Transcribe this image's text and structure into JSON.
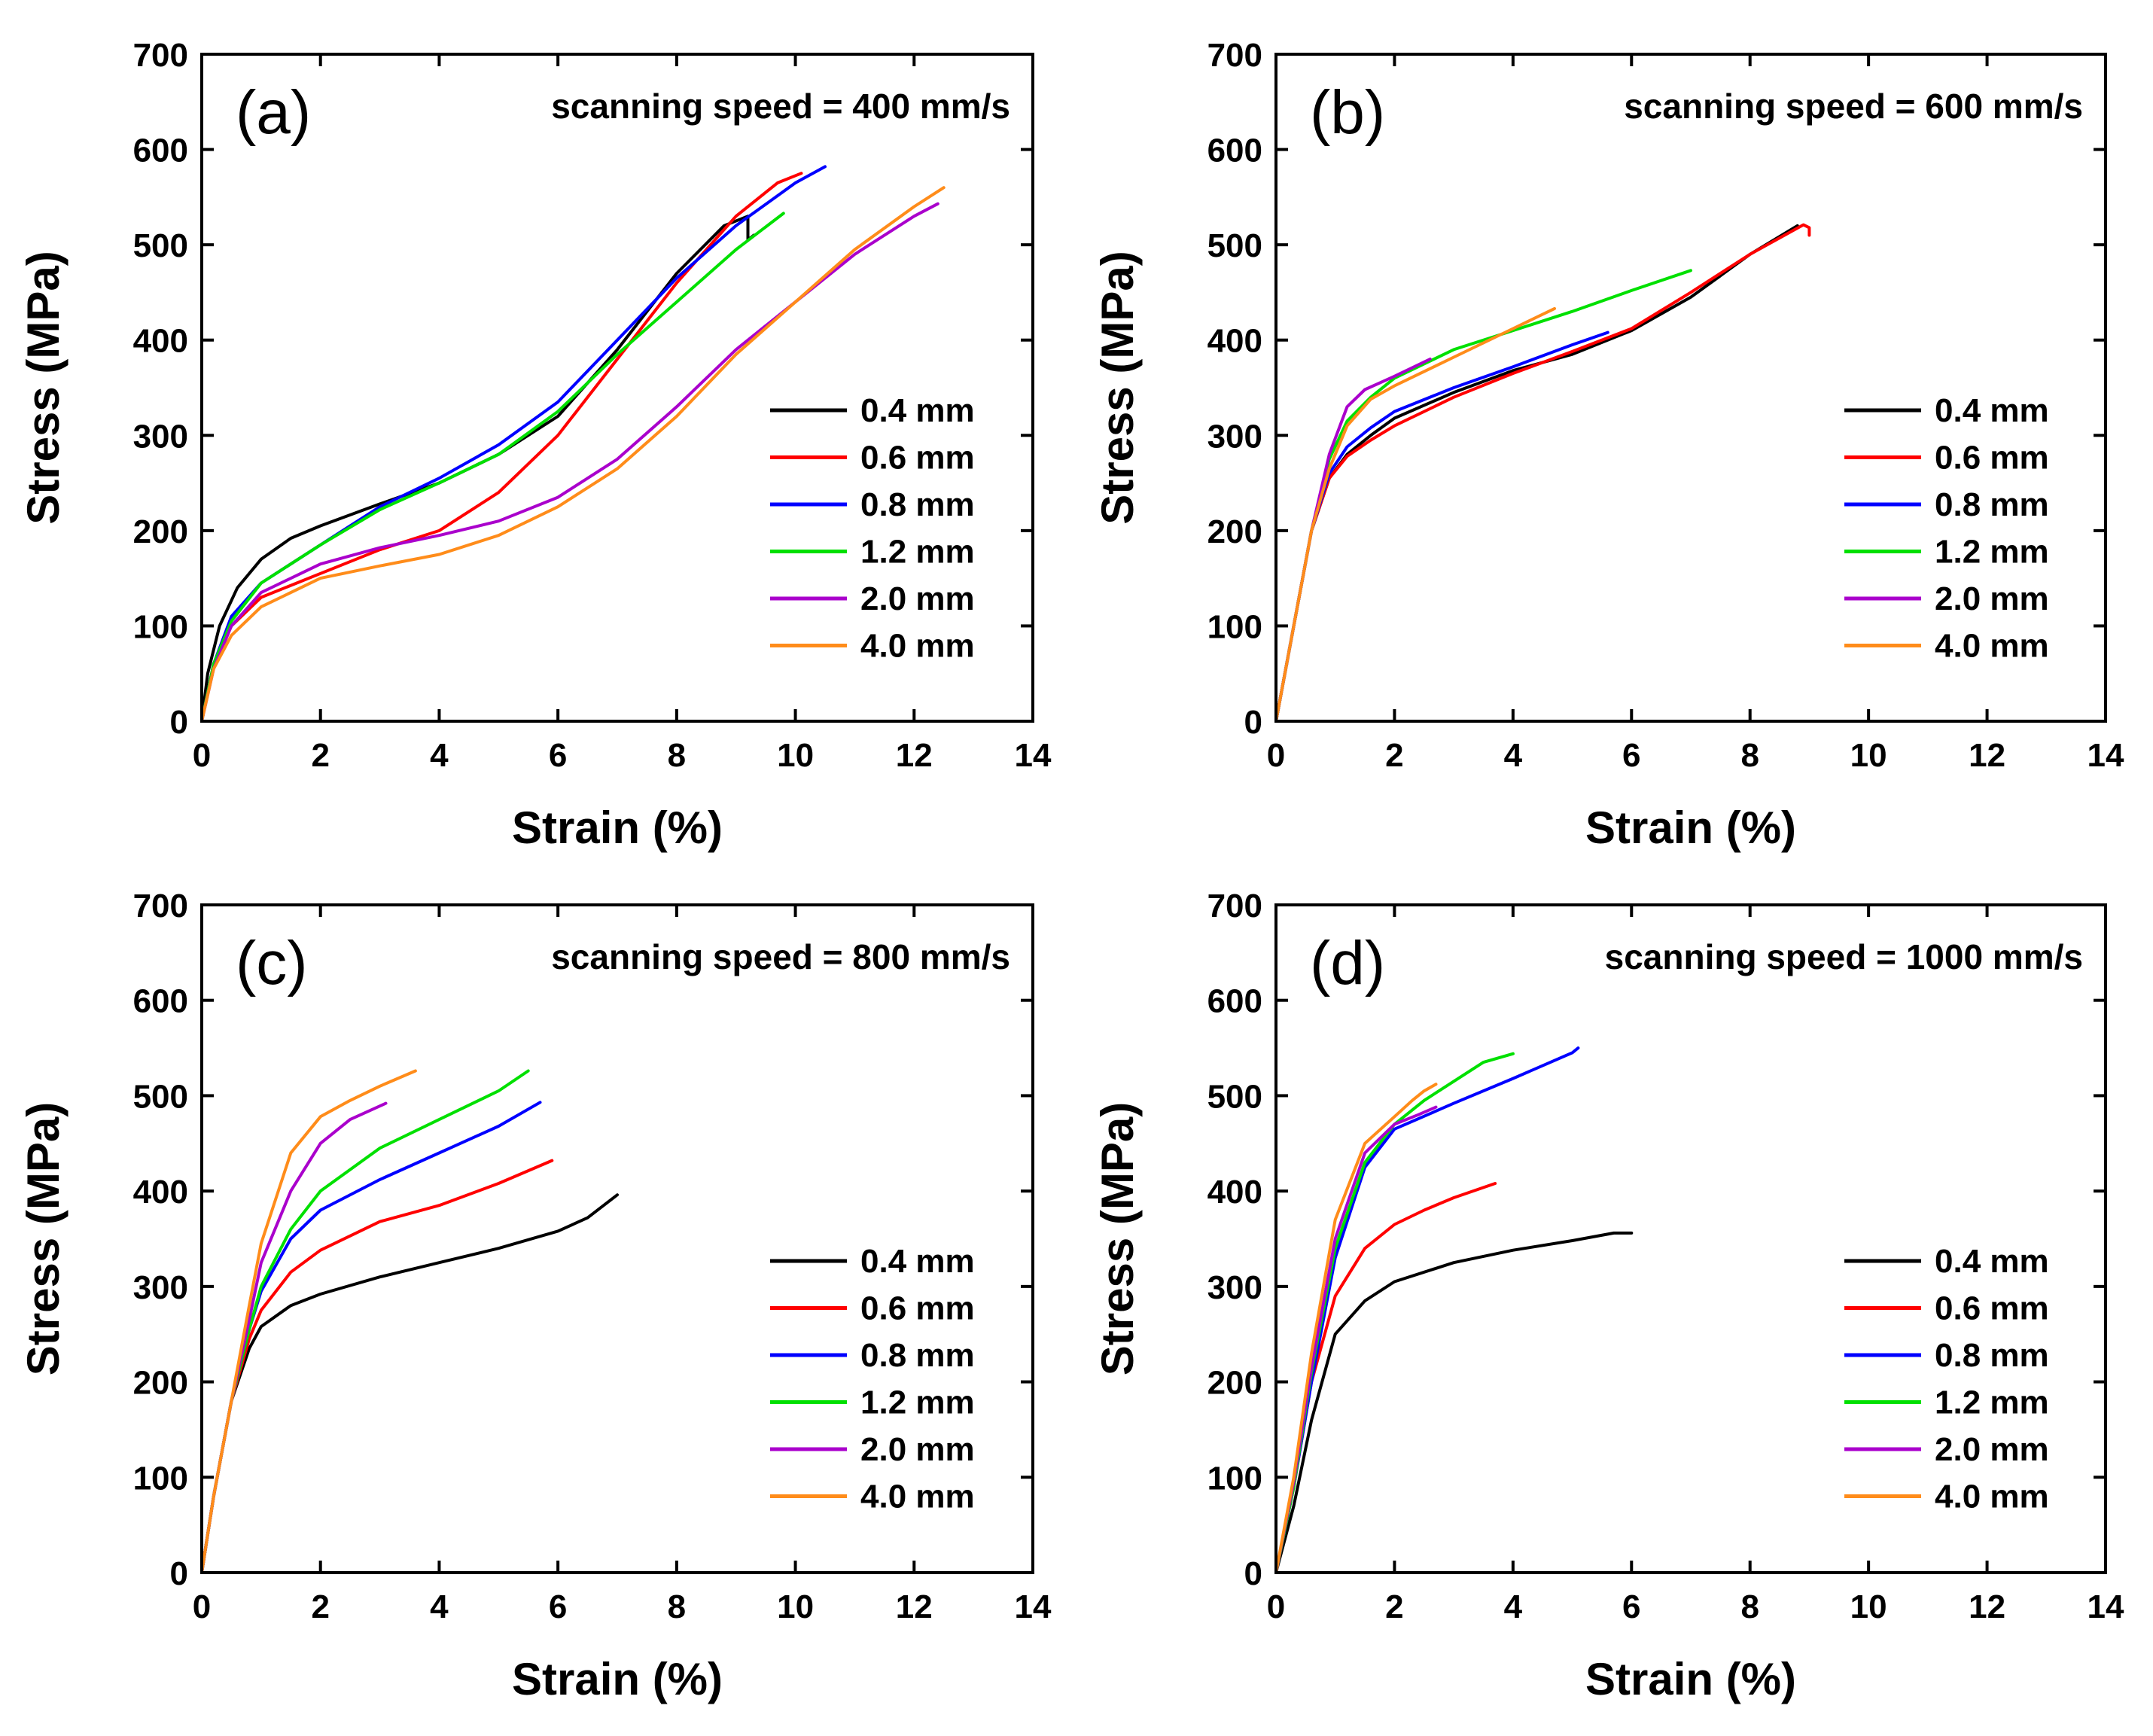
{
  "chart_data": [
    {
      "type": "line",
      "panel_label": "(a)",
      "title": "scanning speed = 400 mm/s",
      "xlabel": "Strain (%)",
      "ylabel": "Stress (MPa)",
      "xlim": [
        0,
        14
      ],
      "ylim": [
        0,
        700
      ],
      "xticks": [
        "0",
        "2",
        "4",
        "6",
        "8",
        "10",
        "12",
        "14"
      ],
      "yticks": [
        "0",
        "100",
        "200",
        "300",
        "400",
        "500",
        "600",
        "700"
      ],
      "legend_position": "center-right",
      "series": [
        {
          "name": "0.4 mm",
          "color": "#000000",
          "x": [
            0,
            0.1,
            0.3,
            0.6,
            1,
            1.5,
            2,
            3,
            4,
            5,
            6,
            7,
            8,
            8.8,
            9.2,
            9.2,
            9.3
          ],
          "y": [
            0,
            50,
            100,
            140,
            170,
            192,
            205,
            228,
            250,
            280,
            320,
            390,
            470,
            520,
            530,
            505,
            510
          ]
        },
        {
          "name": "0.6 mm",
          "color": "#ff0000",
          "x": [
            0,
            0.2,
            0.5,
            1,
            2,
            3,
            4,
            5,
            6,
            7,
            8,
            9,
            9.7,
            10.1
          ],
          "y": [
            0,
            60,
            100,
            130,
            155,
            180,
            200,
            240,
            300,
            380,
            460,
            530,
            565,
            575
          ]
        },
        {
          "name": "0.8 mm",
          "color": "#0000ff",
          "x": [
            0,
            0.2,
            0.5,
            1,
            2,
            3,
            4,
            5,
            6,
            7,
            8,
            9,
            10,
            10.5
          ],
          "y": [
            0,
            60,
            110,
            145,
            185,
            225,
            255,
            290,
            335,
            400,
            465,
            520,
            565,
            582
          ]
        },
        {
          "name": "1.2 mm",
          "color": "#00e000",
          "x": [
            0,
            0.2,
            0.5,
            1,
            2,
            3,
            4,
            5,
            6,
            7,
            8,
            9,
            9.8
          ],
          "y": [
            0,
            60,
            105,
            145,
            185,
            222,
            250,
            280,
            325,
            385,
            440,
            495,
            533
          ]
        },
        {
          "name": "2.0 mm",
          "color": "#aa00cc",
          "x": [
            0,
            0.2,
            0.5,
            1,
            2,
            3,
            4,
            5,
            6,
            7,
            8,
            9,
            10,
            11,
            12,
            12.4
          ],
          "y": [
            0,
            55,
            100,
            135,
            165,
            182,
            195,
            210,
            235,
            275,
            330,
            390,
            440,
            490,
            530,
            543
          ]
        },
        {
          "name": "4.0 mm",
          "color": "#ff8c1a",
          "x": [
            0,
            0.2,
            0.5,
            1,
            2,
            3,
            4,
            5,
            6,
            7,
            8,
            9,
            10,
            11,
            12,
            12.5
          ],
          "y": [
            0,
            55,
            90,
            120,
            150,
            163,
            175,
            195,
            225,
            265,
            320,
            385,
            440,
            495,
            540,
            560
          ]
        }
      ]
    },
    {
      "type": "line",
      "panel_label": "(b)",
      "title": "scanning speed = 600 mm/s",
      "xlabel": "Strain (%)",
      "ylabel": "Stress (MPa)",
      "xlim": [
        0,
        14
      ],
      "ylim": [
        0,
        700
      ],
      "xticks": [
        "0",
        "2",
        "4",
        "6",
        "8",
        "10",
        "12",
        "14"
      ],
      "yticks": [
        "0",
        "100",
        "200",
        "300",
        "400",
        "500",
        "600",
        "700"
      ],
      "legend_position": "center-right",
      "series": [
        {
          "name": "0.4 mm",
          "color": "#000000",
          "x": [
            0,
            0.3,
            0.6,
            0.9,
            1.2,
            1.6,
            2,
            3,
            4,
            5,
            6,
            7,
            8,
            8.8
          ],
          "y": [
            0,
            100,
            200,
            255,
            280,
            300,
            318,
            345,
            368,
            385,
            410,
            445,
            490,
            520
          ]
        },
        {
          "name": "0.6 mm",
          "color": "#ff0000",
          "x": [
            0,
            0.3,
            0.6,
            0.9,
            1.2,
            1.6,
            2,
            3,
            4,
            5,
            6,
            7,
            8,
            8.9,
            9.0,
            9.0
          ],
          "y": [
            0,
            100,
            200,
            255,
            278,
            295,
            310,
            340,
            365,
            388,
            412,
            450,
            490,
            521,
            518,
            510
          ]
        },
        {
          "name": "0.8 mm",
          "color": "#0000ff",
          "x": [
            0,
            0.3,
            0.6,
            0.9,
            1.2,
            1.6,
            2,
            3,
            4,
            5,
            5.6
          ],
          "y": [
            0,
            100,
            200,
            260,
            288,
            308,
            325,
            350,
            372,
            395,
            408
          ]
        },
        {
          "name": "1.2 mm",
          "color": "#00e000",
          "x": [
            0,
            0.3,
            0.6,
            0.9,
            1.2,
            1.6,
            2,
            3,
            4,
            5,
            6,
            7
          ],
          "y": [
            0,
            100,
            200,
            275,
            315,
            340,
            360,
            390,
            410,
            430,
            452,
            473
          ]
        },
        {
          "name": "2.0 mm",
          "color": "#aa00cc",
          "x": [
            0,
            0.3,
            0.6,
            0.9,
            1.2,
            1.5,
            2,
            2.6
          ],
          "y": [
            0,
            100,
            200,
            280,
            330,
            348,
            362,
            380
          ]
        },
        {
          "name": "4.0 mm",
          "color": "#ff8c1a",
          "x": [
            0,
            0.3,
            0.6,
            0.9,
            1.2,
            1.6,
            2,
            3,
            4,
            4.7
          ],
          "y": [
            0,
            100,
            200,
            265,
            310,
            338,
            352,
            382,
            412,
            433
          ]
        }
      ]
    },
    {
      "type": "line",
      "panel_label": "(c)",
      "title": "scanning speed = 800 mm/s",
      "xlabel": "Strain (%)",
      "ylabel": "Stress (MPa)",
      "xlim": [
        0,
        14
      ],
      "ylim": [
        0,
        700
      ],
      "xticks": [
        "0",
        "2",
        "4",
        "6",
        "8",
        "10",
        "12",
        "14"
      ],
      "yticks": [
        "0",
        "100",
        "200",
        "300",
        "400",
        "500",
        "600",
        "700"
      ],
      "legend_position": "center-right",
      "series": [
        {
          "name": "0.4 mm",
          "color": "#000000",
          "x": [
            0,
            0.2,
            0.5,
            0.8,
            1,
            1.5,
            2,
            3,
            4,
            5,
            6,
            6.5,
            7
          ],
          "y": [
            0,
            80,
            180,
            235,
            258,
            280,
            292,
            310,
            325,
            340,
            358,
            372,
            396
          ]
        },
        {
          "name": "0.6 mm",
          "color": "#ff0000",
          "x": [
            0,
            0.2,
            0.5,
            0.8,
            1,
            1.5,
            2,
            3,
            4,
            5,
            5.9
          ],
          "y": [
            0,
            80,
            180,
            245,
            275,
            315,
            338,
            368,
            385,
            408,
            432
          ]
        },
        {
          "name": "0.8 mm",
          "color": "#0000ff",
          "x": [
            0,
            0.2,
            0.5,
            0.8,
            1,
            1.5,
            2,
            3,
            4,
            5,
            5.7
          ],
          "y": [
            0,
            80,
            180,
            255,
            295,
            350,
            380,
            412,
            440,
            468,
            493
          ]
        },
        {
          "name": "1.2 mm",
          "color": "#00e000",
          "x": [
            0,
            0.2,
            0.5,
            0.8,
            1,
            1.5,
            2,
            3,
            4,
            5,
            5.5
          ],
          "y": [
            0,
            80,
            180,
            255,
            300,
            360,
            400,
            445,
            475,
            505,
            526
          ]
        },
        {
          "name": "2.0 mm",
          "color": "#aa00cc",
          "x": [
            0,
            0.2,
            0.5,
            0.8,
            1,
            1.5,
            2,
            2.5,
            3.1
          ],
          "y": [
            0,
            80,
            180,
            265,
            325,
            400,
            450,
            475,
            492
          ]
        },
        {
          "name": "4.0 mm",
          "color": "#ff8c1a",
          "x": [
            0,
            0.2,
            0.5,
            0.8,
            1,
            1.5,
            2,
            2.5,
            3,
            3.6
          ],
          "y": [
            0,
            80,
            180,
            280,
            345,
            440,
            478,
            495,
            510,
            526
          ]
        }
      ]
    },
    {
      "type": "line",
      "panel_label": "(d)",
      "title": "scanning speed = 1000 mm/s",
      "xlabel": "Strain (%)",
      "ylabel": "Stress (MPa)",
      "xlim": [
        0,
        14
      ],
      "ylim": [
        0,
        700
      ],
      "xticks": [
        "0",
        "2",
        "4",
        "6",
        "8",
        "10",
        "12",
        "14"
      ],
      "yticks": [
        "0",
        "100",
        "200",
        "300",
        "400",
        "500",
        "600",
        "700"
      ],
      "legend_position": "center-right",
      "series": [
        {
          "name": "0.4 mm",
          "color": "#000000",
          "x": [
            0,
            0.3,
            0.6,
            1,
            1.5,
            2,
            3,
            4,
            5,
            5.7,
            6
          ],
          "y": [
            0,
            70,
            160,
            250,
            285,
            305,
            325,
            338,
            348,
            356,
            356
          ]
        },
        {
          "name": "0.6 mm",
          "color": "#ff0000",
          "x": [
            0,
            0.3,
            0.6,
            1,
            1.5,
            2,
            2.5,
            3,
            3.7
          ],
          "y": [
            0,
            90,
            200,
            290,
            340,
            365,
            380,
            393,
            408
          ]
        },
        {
          "name": "0.8 mm",
          "color": "#0000ff",
          "x": [
            0,
            0.3,
            0.6,
            1,
            1.5,
            2,
            3,
            4,
            5,
            5.1
          ],
          "y": [
            0,
            90,
            200,
            330,
            425,
            465,
            492,
            518,
            545,
            550
          ]
        },
        {
          "name": "1.2 mm",
          "color": "#00e000",
          "x": [
            0,
            0.3,
            0.6,
            1,
            1.5,
            2,
            2.5,
            3,
            3.5,
            4
          ],
          "y": [
            0,
            90,
            210,
            340,
            430,
            470,
            495,
            515,
            535,
            544
          ]
        },
        {
          "name": "2.0 mm",
          "color": "#aa00cc",
          "x": [
            0,
            0.3,
            0.6,
            1,
            1.5,
            2,
            2.4,
            2.7
          ],
          "y": [
            0,
            95,
            215,
            350,
            440,
            470,
            480,
            488
          ]
        },
        {
          "name": "4.0 mm",
          "color": "#ff8c1a",
          "x": [
            0,
            0.3,
            0.6,
            1,
            1.5,
            2,
            2.3,
            2.5,
            2.7
          ],
          "y": [
            0,
            100,
            230,
            370,
            450,
            478,
            495,
            505,
            512
          ]
        }
      ]
    }
  ]
}
